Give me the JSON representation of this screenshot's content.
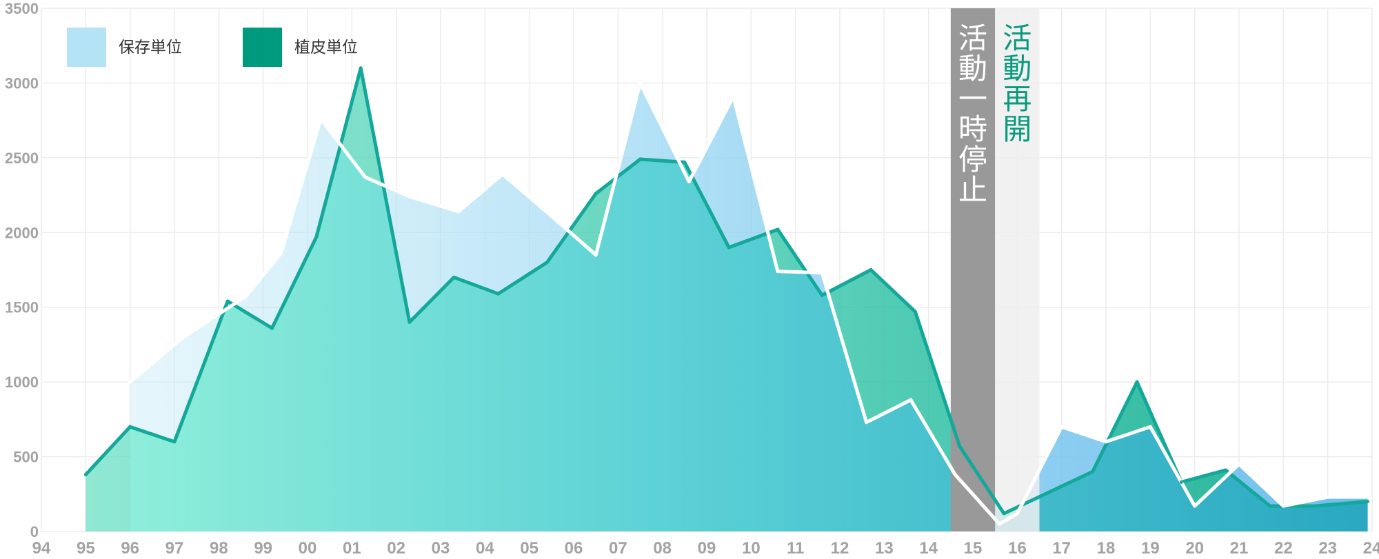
{
  "chart_data": {
    "type": "area",
    "title": "",
    "xlabel": "",
    "ylabel": "",
    "ylim": [
      0,
      3500
    ],
    "y_ticks": [
      "0",
      "500",
      "1000",
      "1500",
      "2000",
      "2500",
      "3000",
      "3500"
    ],
    "x_ticks": [
      "94",
      "95",
      "96",
      "97",
      "98",
      "99",
      "00",
      "01",
      "02",
      "03",
      "04",
      "05",
      "06",
      "07",
      "08",
      "09",
      "10",
      "11",
      "12",
      "13",
      "14",
      "15",
      "16",
      "17",
      "18",
      "19",
      "20",
      "21",
      "22",
      "23",
      "24"
    ],
    "grid": true,
    "legend": {
      "placement": "top-left",
      "entries": [
        {
          "label": "保存単位",
          "color": "#b5e3f6"
        },
        {
          "label": "植皮単位",
          "color": "#009a7e"
        }
      ]
    },
    "colors": {
      "preservation_fill": "#7ec6ee",
      "transplant_line": "#14a89a",
      "transplant_fill_light": "#a5f2e0",
      "overlap_fill": "#3ab0c6",
      "pause_band": "#999999",
      "resume_band": "#efefef",
      "resume_text": "#0a9a7e"
    },
    "series": [
      {
        "name": "保存単位",
        "x": [
          96.0,
          97.2,
          98.6,
          99.4,
          100.3,
          101.3,
          102.3,
          103.4,
          104.4,
          105.5,
          106.5,
          107.5,
          108.6,
          109.6,
          110.6,
          111.6,
          112.6,
          113.6,
          114.6,
          115.6,
          116.0,
          117.0,
          118.0,
          119.0,
          120.0,
          121.0,
          122.0,
          123.0,
          123.9
        ],
        "values": [
          1000,
          1300,
          1570,
          1860,
          2760,
          2370,
          2240,
          2140,
          2390,
          2110,
          1850,
          3000,
          2340,
          2910,
          1740,
          1730,
          730,
          880,
          380,
          50,
          120,
          700,
          600,
          700,
          170,
          450,
          170,
          230,
          230
        ]
      },
      {
        "name": "植皮単位",
        "x": [
          95.0,
          96.0,
          97.0,
          98.2,
          99.2,
          100.2,
          101.2,
          102.3,
          103.3,
          104.3,
          105.4,
          106.5,
          107.5,
          108.5,
          109.5,
          110.6,
          111.6,
          112.7,
          113.7,
          114.7,
          115.7,
          116.7,
          117.7,
          118.7,
          119.7,
          120.7,
          121.7,
          122.7,
          123.9
        ],
        "values": [
          380,
          700,
          600,
          1540,
          1360,
          1970,
          3100,
          1400,
          1700,
          1590,
          1800,
          2260,
          2490,
          2470,
          1900,
          2020,
          1580,
          1750,
          1470,
          570,
          120,
          260,
          400,
          1000,
          330,
          410,
          170,
          170,
          200
        ]
      }
    ],
    "annotations": [
      {
        "label": "活動一時停止",
        "x_start": 114.5,
        "x_end": 115.5
      },
      {
        "label": "活動再開",
        "x_start": 115.5,
        "x_end": 116.5
      }
    ]
  }
}
